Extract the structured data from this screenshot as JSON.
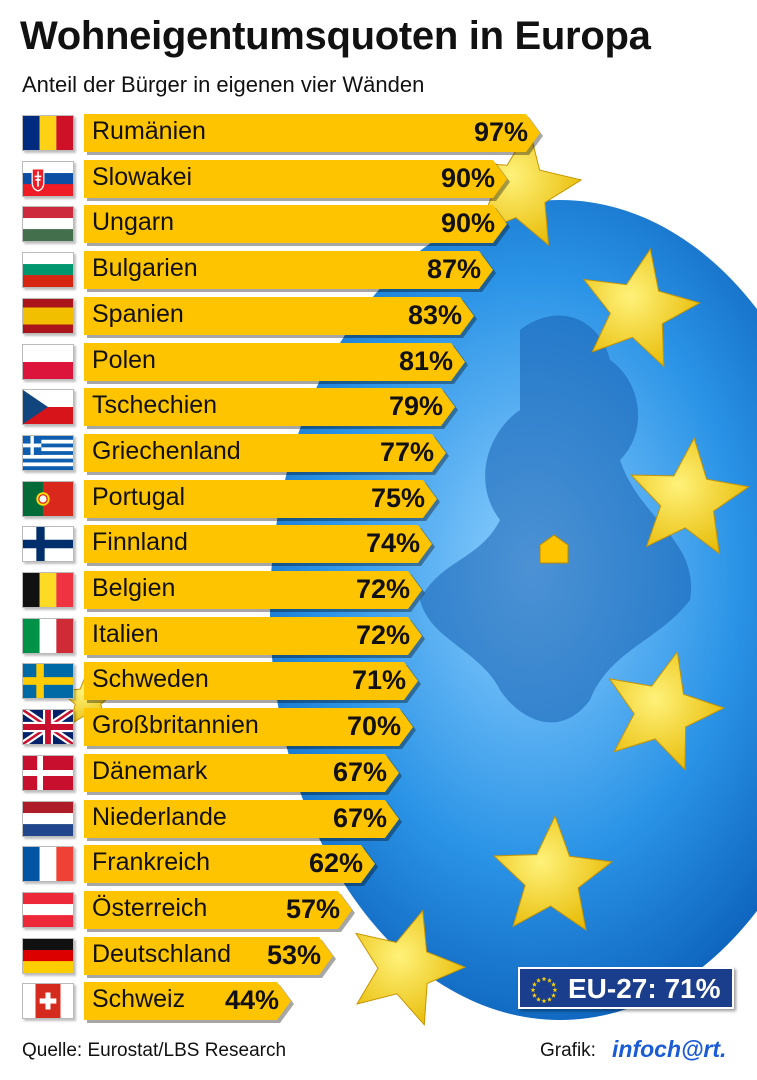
{
  "header": {
    "title": "Wohneigentumsquoten in Europa",
    "subtitle": "Anteil der Bürger in eigenen vier Wänden"
  },
  "chart_data": {
    "type": "bar",
    "orientation": "horizontal",
    "title": "Wohneigentumsquoten in Europa",
    "subtitle": "Anteil der Bürger in eigenen vier Wänden",
    "unit": "%",
    "categories": [
      "Rumänien",
      "Slowakei",
      "Ungarn",
      "Bulgarien",
      "Spanien",
      "Polen",
      "Tschechien",
      "Griechenland",
      "Portugal",
      "Finnland",
      "Belgien",
      "Italien",
      "Schweden",
      "Großbritannien",
      "Dänemark",
      "Niederlande",
      "Frankreich",
      "Österreich",
      "Deutschland",
      "Schweiz"
    ],
    "values": [
      97,
      90,
      90,
      87,
      83,
      81,
      79,
      77,
      75,
      74,
      72,
      72,
      71,
      70,
      67,
      67,
      62,
      57,
      53,
      44
    ],
    "labels": [
      "97%",
      "90%",
      "90%",
      "87%",
      "83%",
      "81%",
      "79%",
      "77%",
      "75%",
      "74%",
      "72%",
      "72%",
      "71%",
      "70%",
      "67%",
      "67%",
      "62%",
      "57%",
      "53%",
      "44%"
    ],
    "flags": [
      "ro-flag",
      "sk-flag",
      "hu-flag",
      "bg-flag",
      "es-flag",
      "pl-flag",
      "cz-flag",
      "gr-flag",
      "pt-flag",
      "fi-flag",
      "be-flag",
      "it-flag",
      "se-flag",
      "gb-flag",
      "dk-flag",
      "nl-flag",
      "fr-flag",
      "at-flag",
      "de-flag",
      "ch-flag"
    ],
    "bar_color": "#ffc400",
    "reference": {
      "label": "EU-27: 71%",
      "value": 71
    }
  },
  "colors": {
    "bar": "#ffc400",
    "globe": "#1f8fe0",
    "star": "#ffd200",
    "eu_box": "#1a3e8c"
  },
  "footer": {
    "source": "Quelle: Eurostat/LBS Research",
    "credit_label": "Grafik:",
    "credit_logo": "infoch@rt."
  }
}
